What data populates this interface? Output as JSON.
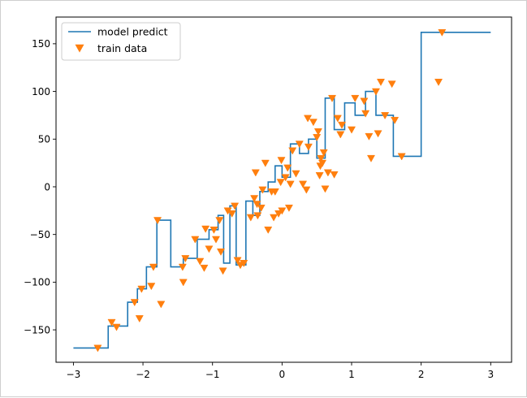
{
  "chart_data": {
    "type": "line",
    "title": "",
    "xlabel": "",
    "ylabel": "",
    "xlim": [
      -3.25,
      3.3
    ],
    "ylim": [
      -184,
      178
    ],
    "xticks": [
      -3,
      -2,
      -1,
      0,
      1,
      2,
      3
    ],
    "yticks": [
      -150,
      -100,
      -50,
      0,
      50,
      100,
      150
    ],
    "xtick_labels": [
      "−3",
      "−2",
      "−1",
      "0",
      "1",
      "2",
      "3"
    ],
    "ytick_labels": [
      "−150",
      "−100",
      "−50",
      "0",
      "50",
      "100",
      "150"
    ],
    "grid": false,
    "legend_position": "upper-left",
    "colors": {
      "model": "#1f77b4",
      "train": "#ff7f0e"
    },
    "series": [
      {
        "name": "model predict",
        "kind": "step-line",
        "x": [
          -3.0,
          -2.5,
          -2.5,
          -2.22,
          -2.22,
          -2.08,
          -2.08,
          -1.95,
          -1.95,
          -1.8,
          -1.8,
          -1.6,
          -1.6,
          -1.42,
          -1.42,
          -1.22,
          -1.22,
          -1.05,
          -1.05,
          -0.92,
          -0.92,
          -0.84,
          -0.84,
          -0.75,
          -0.75,
          -0.66,
          -0.66,
          -0.52,
          -0.52,
          -0.42,
          -0.42,
          -0.32,
          -0.32,
          -0.2,
          -0.2,
          -0.1,
          -0.1,
          0.0,
          0.0,
          0.12,
          0.12,
          0.25,
          0.25,
          0.38,
          0.38,
          0.5,
          0.5,
          0.62,
          0.62,
          0.75,
          0.75,
          0.9,
          0.9,
          1.05,
          1.05,
          1.2,
          1.2,
          1.35,
          1.35,
          1.6,
          1.6,
          2.0,
          2.0,
          3.0
        ],
        "y": [
          -169,
          -169,
          -146,
          -146,
          -121,
          -121,
          -107,
          -107,
          -84,
          -84,
          -35,
          -35,
          -84,
          -84,
          -75,
          -75,
          -55,
          -55,
          -45,
          -45,
          -30,
          -30,
          -80,
          -80,
          -20,
          -20,
          -82,
          -82,
          -15,
          -15,
          -30,
          -30,
          -5,
          -5,
          5,
          5,
          22,
          22,
          10,
          10,
          45,
          45,
          35,
          35,
          50,
          50,
          30,
          30,
          93,
          93,
          60,
          60,
          88,
          88,
          75,
          75,
          100,
          100,
          75,
          75,
          32,
          32,
          162,
          162
        ]
      },
      {
        "name": "train data",
        "kind": "scatter",
        "marker": "triangle-down",
        "x": [
          -2.65,
          -2.45,
          -2.38,
          -2.12,
          -2.05,
          -2.02,
          -1.88,
          -1.85,
          -1.79,
          -1.74,
          -1.43,
          -1.42,
          -1.39,
          -1.25,
          -1.18,
          -1.12,
          -1.1,
          -1.05,
          -0.98,
          -0.95,
          -0.9,
          -0.88,
          -0.85,
          -0.78,
          -0.72,
          -0.68,
          -0.64,
          -0.6,
          -0.55,
          -0.45,
          -0.4,
          -0.38,
          -0.36,
          -0.35,
          -0.3,
          -0.28,
          -0.24,
          -0.2,
          -0.15,
          -0.12,
          -0.1,
          -0.05,
          -0.02,
          -0.01,
          0.0,
          0.05,
          0.08,
          0.1,
          0.12,
          0.15,
          0.2,
          0.25,
          0.3,
          0.35,
          0.37,
          0.38,
          0.45,
          0.5,
          0.52,
          0.54,
          0.55,
          0.56,
          0.58,
          0.6,
          0.62,
          0.66,
          0.72,
          0.75,
          0.8,
          0.84,
          0.86,
          1.0,
          1.05,
          1.18,
          1.2,
          1.25,
          1.28,
          1.35,
          1.38,
          1.42,
          1.48,
          1.58,
          1.62,
          1.72,
          2.25,
          2.3
        ],
        "y": [
          -169,
          -142,
          -147,
          -121,
          -138,
          -107,
          -104,
          -84,
          -35,
          -123,
          -84,
          -100,
          -75,
          -55,
          -78,
          -85,
          -44,
          -65,
          -45,
          -55,
          -35,
          -68,
          -88,
          -25,
          -28,
          -20,
          -77,
          -82,
          -80,
          -32,
          -12,
          15,
          -18,
          -30,
          -22,
          -3,
          25,
          -45,
          -5,
          -32,
          -5,
          -28,
          5,
          28,
          -25,
          10,
          20,
          -22,
          3,
          38,
          14,
          45,
          3,
          -3,
          72,
          42,
          68,
          52,
          58,
          12,
          22,
          30,
          25,
          36,
          -2,
          15,
          93,
          13,
          72,
          55,
          65,
          60,
          93,
          90,
          77,
          53,
          30,
          100,
          56,
          110,
          75,
          108,
          70,
          32,
          110,
          162
        ]
      }
    ]
  }
}
